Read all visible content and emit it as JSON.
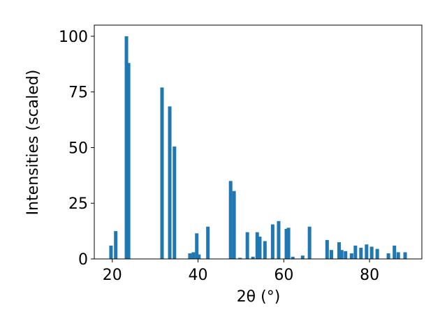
{
  "chart_data": {
    "type": "bar",
    "xlabel": "2θ (°)",
    "ylabel": "Intensities (scaled)",
    "color": "#1f77b4",
    "x": [
      19.7,
      20.8,
      23.3,
      23.8,
      31.6,
      33.4,
      34.5,
      38.1,
      38.9,
      39.7,
      40.2,
      42.3,
      47.6,
      48.4,
      49.8,
      51.5,
      52.8,
      53.8,
      54.4,
      55.6,
      57.4,
      58.8,
      60.6,
      61.1,
      62.1,
      64.4,
      66.0,
      70.1,
      71.1,
      72.9,
      73.5,
      74.4,
      75.8,
      76.7,
      78.0,
      79.3,
      80.5,
      81.8,
      84.4,
      85.8,
      86.7,
      88.3
    ],
    "values": [
      6,
      12.5,
      100,
      88,
      77,
      68.5,
      50.5,
      2.5,
      3,
      11.5,
      2,
      14.5,
      35,
      30.5,
      0.5,
      12,
      1,
      12,
      10,
      8,
      15.5,
      17,
      13.5,
      14,
      1,
      1.5,
      14.5,
      8.5,
      4,
      7.5,
      4,
      3.5,
      2.5,
      6,
      5,
      6.5,
      5.5,
      4.5,
      2.5,
      6,
      3,
      3
    ],
    "xlim": [
      15.8,
      92.2
    ],
    "ylim": [
      0,
      105
    ],
    "xticks": [
      20,
      40,
      60,
      80
    ],
    "yticks": [
      0,
      25,
      50,
      75,
      100
    ]
  }
}
